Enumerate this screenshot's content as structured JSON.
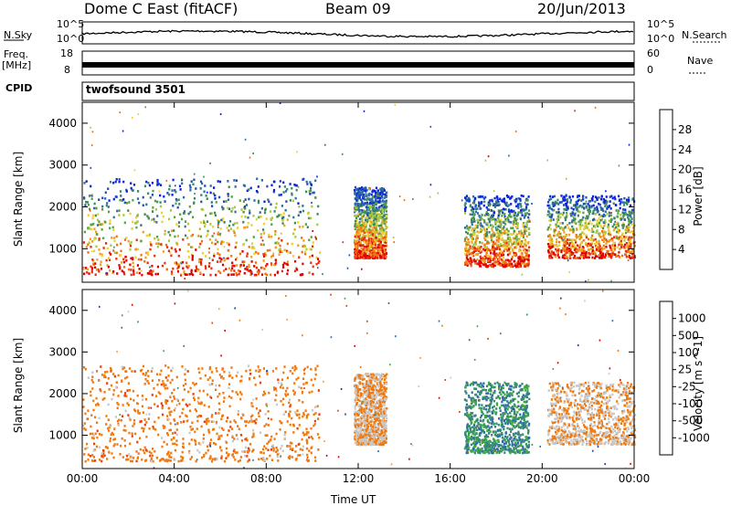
{
  "header": {
    "radar": "Dome C East (fitACF)",
    "beam": "Beam 09",
    "date": "20/Jun/2013"
  },
  "strips": {
    "nsky_label": "N.Sky",
    "nsky_hi": "10^5",
    "nsky_lo": "10^0",
    "nsearch_label": "N.Search",
    "nsearch_hi": "10^5",
    "nsearch_lo": "10^0",
    "freq_label_1": "Freq.",
    "freq_label_2": "[MHz]",
    "freq_hi": "18",
    "freq_lo": "8",
    "nave_label": "Nave",
    "nave_hi": "60",
    "nave_lo": "0",
    "cpid_label": "CPID",
    "cpid_value": "twofsound 3501"
  },
  "chart_data": [
    {
      "type": "heatmap",
      "name": "power",
      "ylabel": "Slant Range [km]",
      "xlabel": "",
      "x_range_hours": [
        0,
        24
      ],
      "ylim": [
        200,
        4500
      ],
      "yticks": [
        "4000",
        "3000",
        "2000",
        "1000"
      ],
      "colorbar": {
        "label": "Power [dB]",
        "ticks": [
          "28",
          "24",
          "20",
          "16",
          "12",
          "8",
          "4"
        ],
        "colors": [
          "#0b20e0",
          "#1e4fb8",
          "#2f6fa0",
          "#3b8a60",
          "#5aa040",
          "#a8c840",
          "#f0d030",
          "#f0a020",
          "#f07010",
          "#e83010",
          "#e00000"
        ]
      },
      "echo_regions": [
        {
          "t0": 0.0,
          "t1": 10.3,
          "r0": 400,
          "r1": 2700,
          "typical_db": 24
        },
        {
          "t0": 11.8,
          "t1": 13.2,
          "r0": 800,
          "r1": 2500,
          "typical_db": 22
        },
        {
          "t0": 16.6,
          "t1": 19.4,
          "r0": 600,
          "r1": 2300,
          "typical_db": 24
        },
        {
          "t0": 20.2,
          "t1": 24.0,
          "r0": 800,
          "r1": 2300,
          "typical_db": 22
        }
      ]
    },
    {
      "type": "heatmap",
      "name": "velocity",
      "ylabel": "Slant Range [km]",
      "xlabel": "Time UT",
      "x_range_hours": [
        0,
        24
      ],
      "xticks": [
        "00:00",
        "04:00",
        "08:00",
        "12:00",
        "16:00",
        "20:00",
        "00:00"
      ],
      "ylim": [
        200,
        4500
      ],
      "yticks": [
        "4000",
        "3000",
        "2000",
        "1000"
      ],
      "colorbar": {
        "label": "Velocity [m s^-1]",
        "ticks": [
          "1000",
          "500",
          "100",
          "25",
          "-25",
          "-100",
          "-500",
          "-1000"
        ],
        "colors": [
          "#1a3fa0",
          "#2e6cb0",
          "#3a8a70",
          "#3fae3a",
          "#c8c8c8",
          "#f5a040",
          "#f07a10",
          "#e84010",
          "#e00000"
        ]
      },
      "echo_regions": [
        {
          "t0": 0.0,
          "t1": 10.3,
          "r0": 400,
          "r1": 2700,
          "typical_velocity": -200
        },
        {
          "t0": 11.8,
          "t1": 13.2,
          "r0": 800,
          "r1": 2500,
          "typical_velocity": -100
        },
        {
          "t0": 16.6,
          "t1": 19.4,
          "r0": 600,
          "r1": 2300,
          "typical_velocity": 150
        },
        {
          "t0": 20.2,
          "t1": 24.0,
          "r0": 800,
          "r1": 2300,
          "typical_velocity": 0
        }
      ]
    }
  ]
}
